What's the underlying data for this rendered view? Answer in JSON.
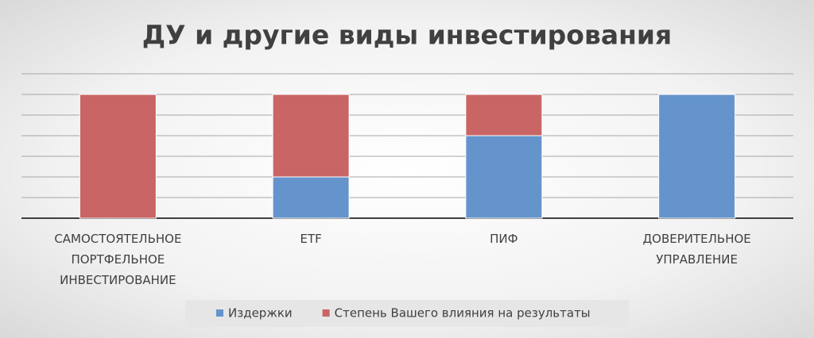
{
  "chart_data": {
    "type": "stacked_bar",
    "title": "ДУ и другие виды инвестирования",
    "categories": [
      "САМОСТОЯТЕЛЬНОЕ ПОРТФЕЛЬНОЕ ИНВЕСТИРОВАНИЕ",
      "ETF",
      "ПИФ",
      "ДОВЕРИТЕЛЬНОЕ УПРАВЛЕНИЕ"
    ],
    "series": [
      {
        "name": "Издержки",
        "color": "#6594cc",
        "values": [
          0,
          2,
          4,
          6
        ]
      },
      {
        "name": "Степень Вашего влияния на результаты",
        "color": "#c96565",
        "values": [
          6,
          4,
          2,
          0
        ]
      }
    ],
    "ylim": [
      0,
      7
    ],
    "yticks": [
      0,
      1,
      2,
      3,
      4,
      5,
      6,
      7
    ],
    "grid": true,
    "legend": "bottom"
  }
}
